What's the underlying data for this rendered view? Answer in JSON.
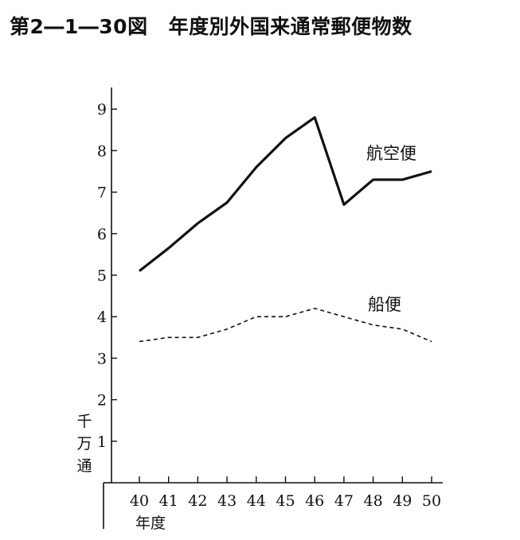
{
  "figure": {
    "number": "第2―1―30図",
    "title": "年度別外国来通常郵便物数"
  },
  "chart_data": {
    "type": "line",
    "xlabel": "年度",
    "ylabel": "千万通",
    "x": [
      "40",
      "41",
      "42",
      "43",
      "44",
      "45",
      "46",
      "47",
      "48",
      "49",
      "50"
    ],
    "yticks": [
      "1",
      "2",
      "3",
      "4",
      "5",
      "6",
      "7",
      "8",
      "9"
    ],
    "ylim": [
      0,
      9.5
    ],
    "grid": false,
    "series": [
      {
        "name": "航空便",
        "style": "solid",
        "color": "#111111",
        "values": [
          5.1,
          5.65,
          6.25,
          6.75,
          7.6,
          8.3,
          8.8,
          6.7,
          7.3,
          7.3,
          7.5
        ]
      },
      {
        "name": "船便",
        "style": "dashed",
        "color": "#111111",
        "values": [
          3.4,
          3.5,
          3.5,
          3.7,
          4.0,
          4.0,
          4.2,
          4.0,
          3.8,
          3.7,
          3.4
        ]
      }
    ]
  }
}
